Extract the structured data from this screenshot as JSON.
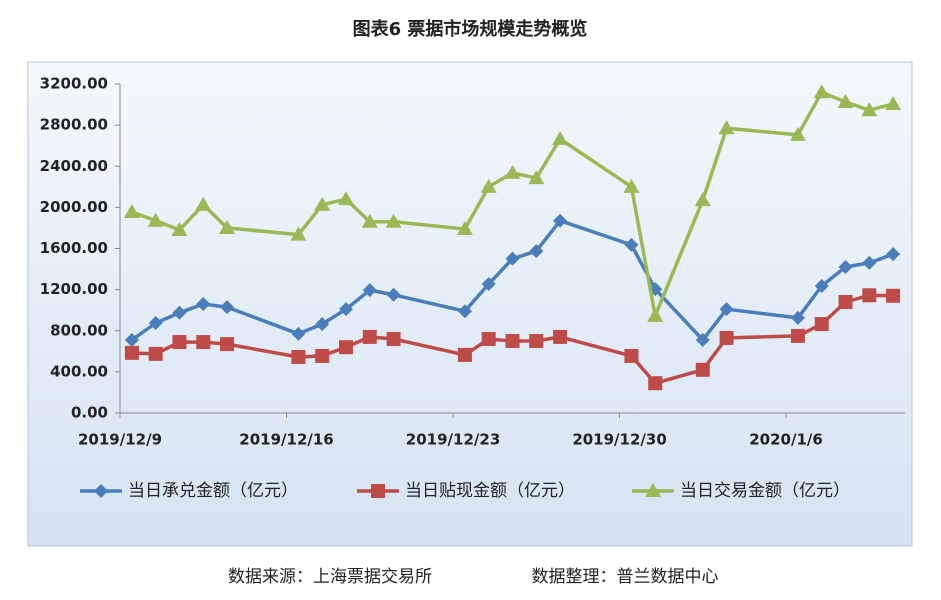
{
  "chart_data": {
    "type": "line",
    "title": "图表6  票据市场规模走势概览",
    "source": "数据来源：上海票据交易所",
    "organizer": "数据整理：普兰数据中心",
    "x": [
      "2019/12/9",
      "2019/12/10",
      "2019/12/11",
      "2019/12/12",
      "2019/12/13",
      "2019/12/16",
      "2019/12/17",
      "2019/12/18",
      "2019/12/19",
      "2019/12/20",
      "2019/12/23",
      "2019/12/24",
      "2019/12/25",
      "2019/12/26",
      "2019/12/27",
      "2019/12/30",
      "2019/12/31",
      "2020/1/2",
      "2020/1/3",
      "2020/1/6",
      "2020/1/7",
      "2020/1/8",
      "2020/1/9",
      "2020/1/10"
    ],
    "xlim": [
      "2019/12/9",
      "2020/1/11"
    ],
    "xticks": [
      "2019/12/9",
      "2019/12/16",
      "2019/12/23",
      "2019/12/30",
      "2020/1/6"
    ],
    "ylim": [
      0,
      3200
    ],
    "yticks": [
      {
        "value": 0,
        "label": "0.00"
      },
      {
        "value": 400,
        "label": "400.00"
      },
      {
        "value": 800,
        "label": "800.00"
      },
      {
        "value": 1200,
        "label": "1200.00"
      },
      {
        "value": 1600,
        "label": "1600.00"
      },
      {
        "value": 2000,
        "label": "2000.00"
      },
      {
        "value": 2400,
        "label": "2400.00"
      },
      {
        "value": 2800,
        "label": "2800.00"
      },
      {
        "value": 3200,
        "label": "3200.00"
      }
    ],
    "grid": false,
    "series": [
      {
        "name": "当日承兑金额（亿元）",
        "color": "#4a7ebb",
        "marker": "diamond",
        "values": [
          710,
          875,
          975,
          1060,
          1030,
          770,
          865,
          1010,
          1195,
          1150,
          990,
          1255,
          1500,
          1575,
          1870,
          1635,
          1205,
          710,
          1010,
          925,
          1235,
          1420,
          1460,
          1545
        ]
      },
      {
        "name": "当日贴现金额（亿元）",
        "color": "#be4b48",
        "marker": "square",
        "values": [
          585,
          575,
          690,
          690,
          670,
          545,
          555,
          640,
          740,
          720,
          565,
          720,
          700,
          700,
          740,
          555,
          290,
          420,
          730,
          750,
          865,
          1080,
          1145,
          1140
        ]
      },
      {
        "name": "当日交易金额（亿元）",
        "color": "#98b954",
        "marker": "triangle",
        "values": [
          1955,
          1870,
          1780,
          2025,
          1800,
          1735,
          2025,
          2080,
          1860,
          1860,
          1790,
          2200,
          2335,
          2285,
          2665,
          2200,
          945,
          2070,
          2770,
          2705,
          3120,
          3025,
          2945,
          3005
        ]
      }
    ]
  }
}
